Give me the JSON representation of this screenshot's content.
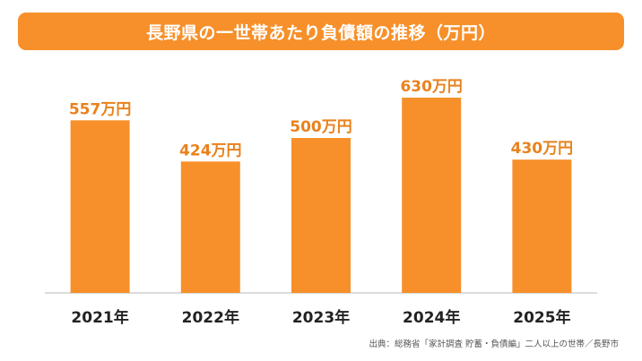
{
  "title": "長野県の一世帯あたり負債額の推移（万円）",
  "source": "出典：総務省「家計調査 貯蓄・負債編」二人以上の世帯／長野市",
  "colors": {
    "bar": "#f7902a",
    "accent": "#f7902a",
    "label": "#e8821d",
    "axis_text": "#222222",
    "baseline": "#c8c8c8"
  },
  "chart_data": {
    "type": "bar",
    "title": "長野県の一世帯あたり負債額の推移（万円）",
    "categories": [
      "2021年",
      "2022年",
      "2023年",
      "2024年",
      "2025年"
    ],
    "values": [
      557,
      424,
      500,
      630,
      430
    ],
    "data_labels": [
      "557万円",
      "424万円",
      "500万円",
      "630万円",
      "430万円"
    ],
    "unit": "万円",
    "xlabel": "",
    "ylabel": "",
    "ylim": [
      0,
      680
    ],
    "grid": false,
    "legend": "none"
  }
}
